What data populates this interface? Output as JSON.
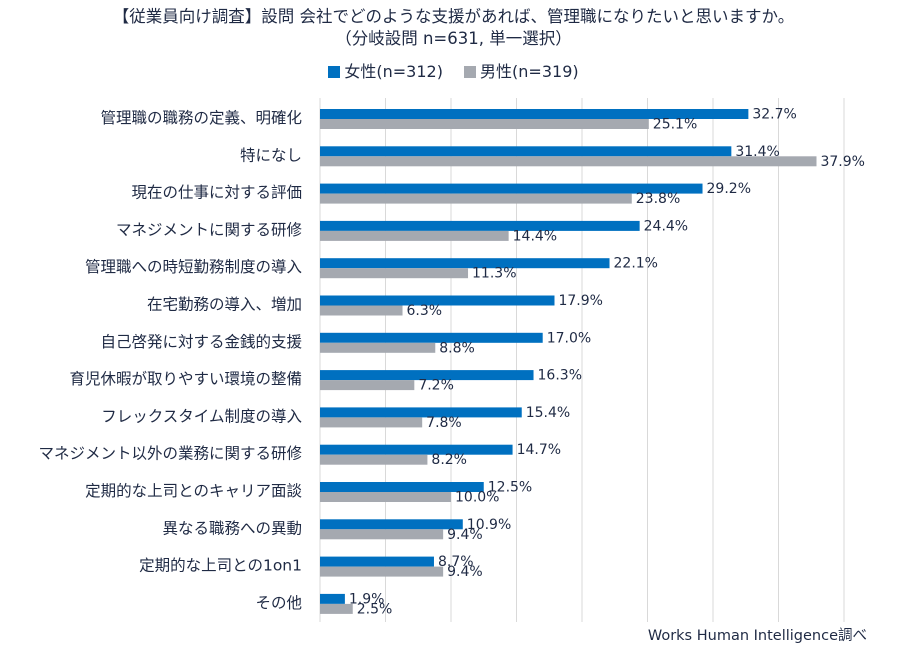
{
  "title_line1": "【従業員向け調査】設問 会社でどのような支援があれば、管理職になりたいと思いますか。",
  "title_line2": "（分岐設問 n=631, 単一選択）",
  "source": "Works Human Intelligence調べ",
  "colors": {
    "female": "#0070c0",
    "male": "#a5a9b0",
    "grid": "#d9d9d9"
  },
  "chart_data": {
    "type": "bar",
    "orientation": "horizontal",
    "title": "【従業員向け調査】設問 会社でどのような支援があれば、管理職になりたいと思いますか。（分岐設問 n=631, 単一選択）",
    "categories": [
      "管理職の職務の定義、明確化",
      "特になし",
      "現在の仕事に対する評価",
      "マネジメントに関する研修",
      "管理職への時短勤務制度の導入",
      "在宅勤務の導入、増加",
      "自己啓発に対する金銭的支援",
      "育児休暇が取りやすい環境の整備",
      "フレックスタイム制度の導入",
      "マネジメント以外の業務に関する研修",
      "定期的な上司とのキャリア面談",
      "異なる職務への異動",
      "定期的な上司との1on1",
      "その他"
    ],
    "series": [
      {
        "name": "女性(n=312)",
        "color": "#0070c0",
        "values": [
          32.7,
          31.4,
          29.2,
          24.4,
          22.1,
          17.9,
          17.0,
          16.3,
          15.4,
          14.7,
          12.5,
          10.9,
          8.7,
          1.9
        ],
        "labels": [
          "32.7%",
          "31.4%",
          "29.2%",
          "24.4%",
          "22.1%",
          "17.9%",
          "17.0%",
          "16.3%",
          "15.4%",
          "14.7%",
          "12.5%",
          "10.9%",
          "8.7%",
          "1.9%"
        ]
      },
      {
        "name": "男性(n=319)",
        "color": "#a5a9b0",
        "values": [
          25.1,
          37.9,
          23.8,
          14.4,
          11.3,
          6.3,
          8.8,
          7.2,
          7.8,
          8.2,
          10.0,
          9.4,
          9.4,
          2.5
        ],
        "labels": [
          "25.1%",
          "37.9%",
          "23.8%",
          "14.4%",
          "11.3%",
          "6.3%",
          "8.8%",
          "7.2%",
          "7.8%",
          "8.2%",
          "10.0%",
          "9.4%",
          "9.4%",
          "2.5%"
        ]
      }
    ],
    "xlim": [
      0,
      40
    ],
    "grid": true,
    "legend": "top-center"
  }
}
